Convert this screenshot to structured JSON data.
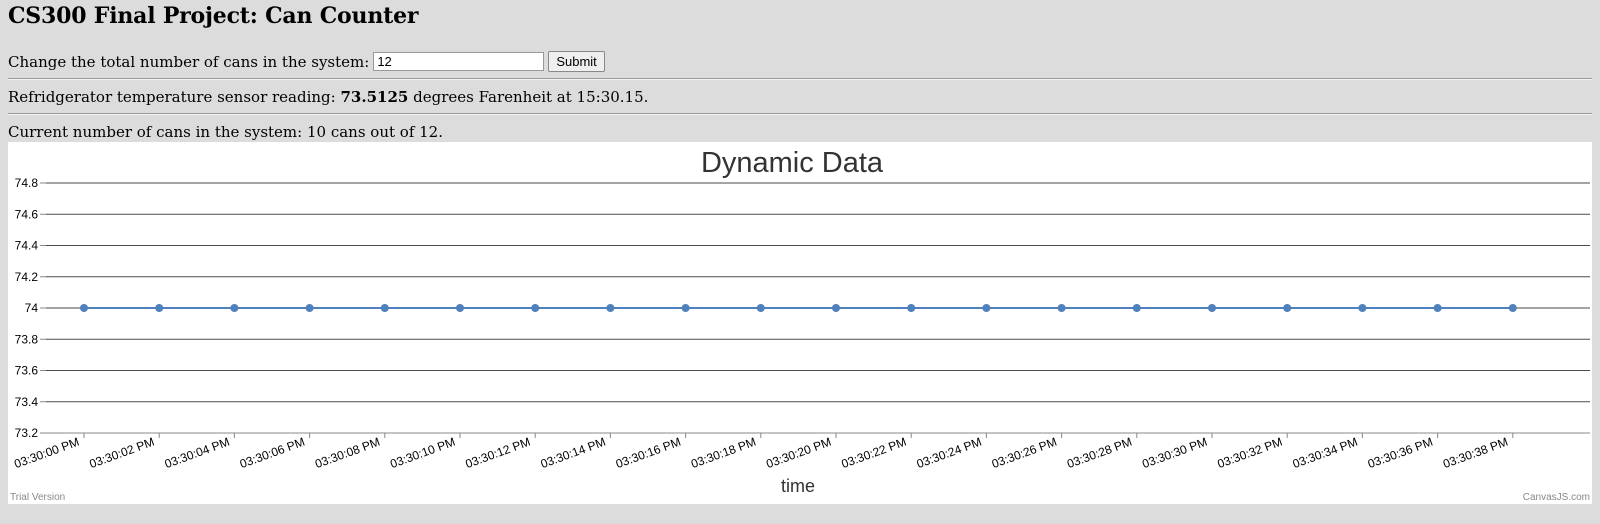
{
  "page": {
    "title": "CS300 Final Project: Can Counter"
  },
  "form": {
    "label": "Change the total number of cans in the system:",
    "input_value": "12",
    "submit_label": "Submit"
  },
  "sensor": {
    "prefix": "Refridgerator temperature sensor reading:",
    "value": "73.5125",
    "middle": "degrees Farenheit at",
    "time": "15:30.15."
  },
  "cans": {
    "text": "Current number of cans in the system: 10 cans out of 12."
  },
  "chart_data": {
    "type": "line",
    "title": "Dynamic Data",
    "xlabel": "time",
    "ylabel": "",
    "ylim": [
      73.2,
      74.8
    ],
    "yticks": [
      "73.2",
      "73.4",
      "73.6",
      "73.8",
      "74",
      "74.2",
      "74.4",
      "74.6",
      "74.8"
    ],
    "categories": [
      "03:30:00 PM",
      "03:30:02 PM",
      "03:30:04 PM",
      "03:30:06 PM",
      "03:30:08 PM",
      "03:30:10 PM",
      "03:30:12 PM",
      "03:30:14 PM",
      "03:30:16 PM",
      "03:30:18 PM",
      "03:30:20 PM",
      "03:30:22 PM",
      "03:30:24 PM",
      "03:30:26 PM",
      "03:30:28 PM",
      "03:30:30 PM",
      "03:30:32 PM",
      "03:30:34 PM",
      "03:30:36 PM",
      "03:30:38 PM"
    ],
    "values": [
      74,
      74,
      74,
      74,
      74,
      74,
      74,
      74,
      74,
      74,
      74,
      74,
      74,
      74,
      74,
      74,
      74,
      74,
      74,
      74
    ],
    "grid": true,
    "color": "#4f81bc",
    "watermark_left": "Trial Version",
    "watermark_right": "CanvasJS.com"
  }
}
